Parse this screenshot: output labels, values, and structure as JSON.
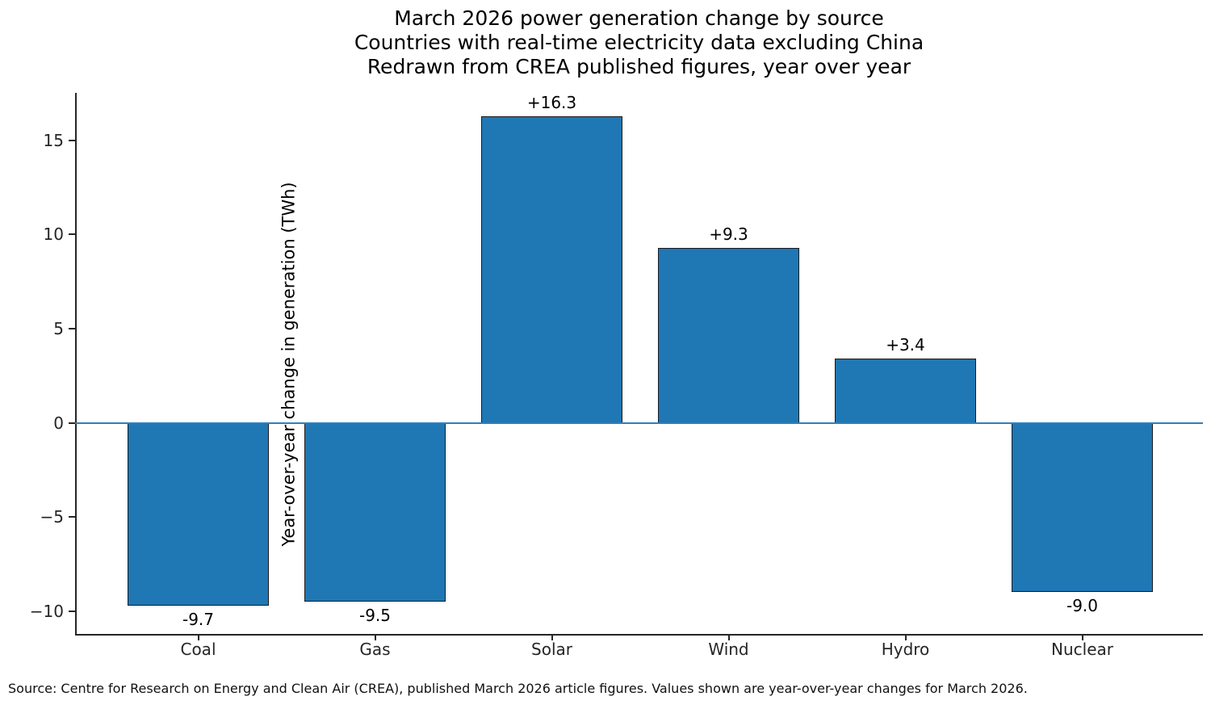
{
  "source_note": "Source: Centre for Research on Energy and Clean Air (CREA), published March 2026 article figures. Values shown are year-over-year changes for March 2026.",
  "chart_data": {
    "type": "bar",
    "title": "March 2026 power generation change by source",
    "subtitle_lines": [
      "Countries with real-time electricity data excluding China",
      "Redrawn from CREA published figures, year over year"
    ],
    "categories": [
      "Coal",
      "Gas",
      "Solar",
      "Wind",
      "Hydro",
      "Nuclear"
    ],
    "values": [
      -9.7,
      -9.5,
      16.3,
      9.3,
      3.4,
      -9.0
    ],
    "bar_labels": [
      "-9.7",
      "-9.5",
      "+16.3",
      "+9.3",
      "+3.4",
      "-9.0"
    ],
    "xlabel": "",
    "ylabel": "Year-over-year change in generation (TWh)",
    "ylim": [
      -11.22,
      17.53
    ],
    "yticks": [
      {
        "value": 15,
        "label": "15"
      },
      {
        "value": 10,
        "label": "10"
      },
      {
        "value": 5,
        "label": "5"
      },
      {
        "value": 0,
        "label": "0"
      },
      {
        "value": -5,
        "label": "−5"
      },
      {
        "value": -10,
        "label": "−10"
      }
    ],
    "zero_line_value": 0,
    "grid": false,
    "legend": null,
    "colors": {
      "bar_fill": "#1f77b4",
      "bar_edge": "#1b1b1b",
      "zero_line": "#2f7fbf",
      "axis": "#262626",
      "text": "#000000",
      "background": "#ffffff"
    }
  }
}
